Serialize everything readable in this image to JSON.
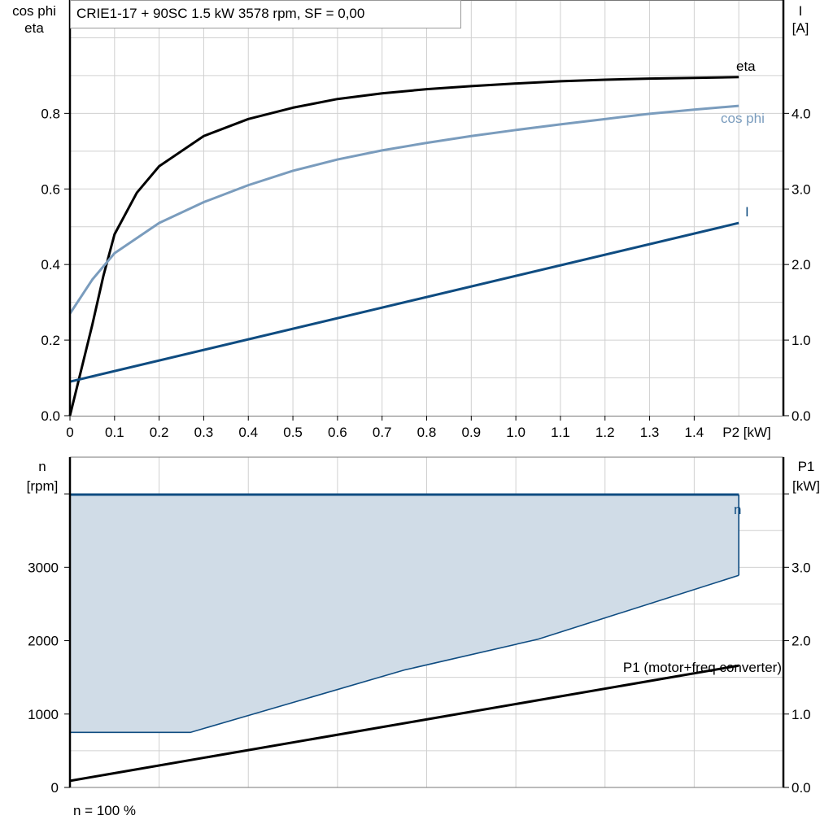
{
  "title": "CRIE1-17 + 90SC   1.5 kW   3578 rpm, SF = 0,00",
  "footer_note": "n = 100 %",
  "colors": {
    "eta": "#000000",
    "cos_phi": "#7a9cbd",
    "I": "#0f4c81",
    "n_line": "#0f4c81",
    "n_fill": "#d0dce7",
    "P1": "#000000",
    "grid": "#d0d0d0"
  },
  "chart_data": [
    {
      "type": "line",
      "xlabel": "P2 [kW]",
      "ylabel_left": [
        "cos phi",
        "eta"
      ],
      "ylabel_right": [
        "I",
        "[A]"
      ],
      "xlim": [
        0,
        1.6
      ],
      "ylim_left": [
        0,
        1.1
      ],
      "ylim_right": [
        0,
        5.5
      ],
      "x_ticks": [
        "0",
        "0.1",
        "0.2",
        "0.3",
        "0.4",
        "0.5",
        "0.6",
        "0.7",
        "0.8",
        "0.9",
        "1.0",
        "1.1",
        "1.2",
        "1.3",
        "1.4"
      ],
      "y_ticks_left": [
        "0.0",
        "0.2",
        "0.4",
        "0.6",
        "0.8"
      ],
      "y_ticks_right": [
        "0.0",
        "1.0",
        "2.0",
        "3.0",
        "4.0"
      ],
      "grid": true,
      "series": [
        {
          "name": "eta",
          "axis": "left",
          "x": [
            0,
            0.025,
            0.05,
            0.075,
            0.1,
            0.15,
            0.2,
            0.3,
            0.4,
            0.5,
            0.6,
            0.7,
            0.8,
            0.9,
            1.0,
            1.1,
            1.2,
            1.3,
            1.4,
            1.5
          ],
          "y": [
            0,
            0.12,
            0.24,
            0.37,
            0.48,
            0.59,
            0.66,
            0.74,
            0.785,
            0.815,
            0.838,
            0.853,
            0.864,
            0.872,
            0.879,
            0.885,
            0.889,
            0.892,
            0.894,
            0.896
          ]
        },
        {
          "name": "cos phi",
          "axis": "left",
          "x": [
            0,
            0.05,
            0.1,
            0.2,
            0.3,
            0.4,
            0.5,
            0.6,
            0.7,
            0.8,
            0.9,
            1.0,
            1.1,
            1.2,
            1.3,
            1.4,
            1.5
          ],
          "y": [
            0.27,
            0.36,
            0.43,
            0.51,
            0.565,
            0.61,
            0.648,
            0.678,
            0.702,
            0.722,
            0.74,
            0.756,
            0.771,
            0.785,
            0.799,
            0.81,
            0.82
          ]
        },
        {
          "name": "I",
          "axis": "right",
          "x": [
            0,
            1.5
          ],
          "y": [
            0.45,
            2.55
          ]
        }
      ]
    },
    {
      "type": "area",
      "ylabel_left": [
        "n",
        "[rpm]"
      ],
      "ylabel_right": [
        "P1",
        "[kW]"
      ],
      "xlim": [
        0,
        1.6
      ],
      "ylim_left": [
        0,
        4500
      ],
      "ylim_right": [
        0,
        4.5
      ],
      "y_ticks_left": [
        "0",
        "1000",
        "2000",
        "3000"
      ],
      "y_ticks_right": [
        "0.0",
        "1.0",
        "2.0",
        "3.0"
      ],
      "grid": true,
      "series": [
        {
          "name": "n",
          "axis": "left",
          "upper": {
            "x": [
              0,
              1.5
            ],
            "y": [
              3990,
              3990
            ]
          },
          "lower": {
            "x": [
              0,
              0.27,
              0.75,
              1.05,
              1.5
            ],
            "y": [
              750,
              750,
              1600,
              2020,
              2890
            ]
          }
        },
        {
          "name": "P1 (motor+freq converter)",
          "axis": "right",
          "x": [
            0,
            1.5
          ],
          "y": [
            0.09,
            1.66
          ]
        }
      ]
    }
  ]
}
